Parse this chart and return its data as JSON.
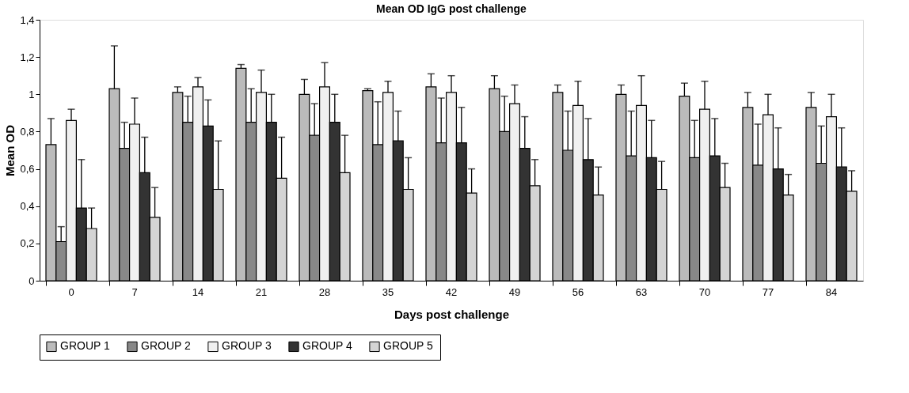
{
  "chart_data": {
    "type": "bar",
    "title": "Mean OD IgG post challenge",
    "xlabel": "Days post challenge",
    "ylabel": "Mean OD",
    "categories": [
      "0",
      "7",
      "14",
      "21",
      "28",
      "35",
      "42",
      "49",
      "56",
      "63",
      "70",
      "77",
      "84"
    ],
    "series": [
      {
        "name": "GROUP 1",
        "color": "#bbbbbb",
        "values": [
          0.73,
          1.03,
          1.01,
          1.14,
          1.0,
          1.02,
          1.04,
          1.03,
          1.01,
          1.0,
          0.99,
          0.93,
          0.93
        ],
        "errors": [
          [
            0.73,
            0.87
          ],
          [
            1.03,
            1.26
          ],
          [
            1.01,
            1.04
          ],
          [
            1.14,
            1.16
          ],
          [
            1.0,
            1.08
          ],
          [
            1.02,
            1.03
          ],
          [
            1.04,
            1.11
          ],
          [
            1.03,
            1.1
          ],
          [
            1.01,
            1.05
          ],
          [
            1.0,
            1.05
          ],
          [
            0.99,
            1.06
          ],
          [
            0.93,
            1.01
          ],
          [
            0.93,
            1.01
          ]
        ]
      },
      {
        "name": "GROUP 2",
        "color": "#888888",
        "values": [
          0.21,
          0.71,
          0.85,
          0.85,
          0.78,
          0.73,
          0.74,
          0.8,
          0.7,
          0.67,
          0.66,
          0.62,
          0.63
        ],
        "errors": [
          [
            0.21,
            0.29
          ],
          [
            0.71,
            0.85
          ],
          [
            0.85,
            0.99
          ],
          [
            0.85,
            1.03
          ],
          [
            0.78,
            0.95
          ],
          [
            0.73,
            0.96
          ],
          [
            0.74,
            0.98
          ],
          [
            0.8,
            0.99
          ],
          [
            0.7,
            0.91
          ],
          [
            0.67,
            0.91
          ],
          [
            0.66,
            0.86
          ],
          [
            0.62,
            0.84
          ],
          [
            0.63,
            0.83
          ]
        ]
      },
      {
        "name": "GROUP 3",
        "color": "#f0f0f0",
        "values": [
          0.86,
          0.84,
          1.04,
          1.01,
          1.04,
          1.01,
          1.01,
          0.95,
          0.94,
          0.94,
          0.92,
          0.89,
          0.88
        ],
        "errors": [
          [
            0.86,
            0.92
          ],
          [
            0.84,
            0.98
          ],
          [
            1.04,
            1.09
          ],
          [
            1.01,
            1.13
          ],
          [
            1.04,
            1.17
          ],
          [
            1.01,
            1.07
          ],
          [
            1.01,
            1.1
          ],
          [
            0.95,
            1.05
          ],
          [
            0.94,
            1.07
          ],
          [
            0.94,
            1.1
          ],
          [
            0.92,
            1.07
          ],
          [
            0.89,
            1.0
          ],
          [
            0.88,
            1.0
          ]
        ]
      },
      {
        "name": "GROUP 4",
        "color": "#333333",
        "values": [
          0.39,
          0.58,
          0.83,
          0.85,
          0.85,
          0.75,
          0.74,
          0.71,
          0.65,
          0.66,
          0.67,
          0.6,
          0.61
        ],
        "errors": [
          [
            0.39,
            0.65
          ],
          [
            0.58,
            0.77
          ],
          [
            0.83,
            0.97
          ],
          [
            0.85,
            1.0
          ],
          [
            0.85,
            1.0
          ],
          [
            0.75,
            0.91
          ],
          [
            0.74,
            0.93
          ],
          [
            0.71,
            0.88
          ],
          [
            0.65,
            0.87
          ],
          [
            0.66,
            0.86
          ],
          [
            0.67,
            0.87
          ],
          [
            0.6,
            0.82
          ],
          [
            0.61,
            0.82
          ]
        ]
      },
      {
        "name": "GROUP 5",
        "color": "#d4d4d4",
        "values": [
          0.28,
          0.34,
          0.49,
          0.55,
          0.58,
          0.49,
          0.47,
          0.51,
          0.46,
          0.49,
          0.5,
          0.46,
          0.48
        ],
        "errors": [
          [
            0.28,
            0.39
          ],
          [
            0.34,
            0.5
          ],
          [
            0.49,
            0.75
          ],
          [
            0.55,
            0.77
          ],
          [
            0.58,
            0.78
          ],
          [
            0.49,
            0.66
          ],
          [
            0.47,
            0.6
          ],
          [
            0.51,
            0.65
          ],
          [
            0.46,
            0.61
          ],
          [
            0.49,
            0.64
          ],
          [
            0.5,
            0.63
          ],
          [
            0.46,
            0.57
          ],
          [
            0.48,
            0.59
          ]
        ]
      }
    ],
    "ylim": [
      0,
      1.4
    ],
    "yticks": [
      0,
      {
        "value": 0.2,
        "label": "0,2"
      },
      {
        "value": 0.4,
        "label": "0,4"
      },
      {
        "value": 0.6,
        "label": "0,6"
      },
      {
        "value": 0.8,
        "label": "0,8"
      },
      1,
      {
        "value": 1.2,
        "label": "1,2"
      },
      {
        "value": 1.4,
        "label": "1,4"
      }
    ],
    "grid": false,
    "legend": "bottom"
  }
}
